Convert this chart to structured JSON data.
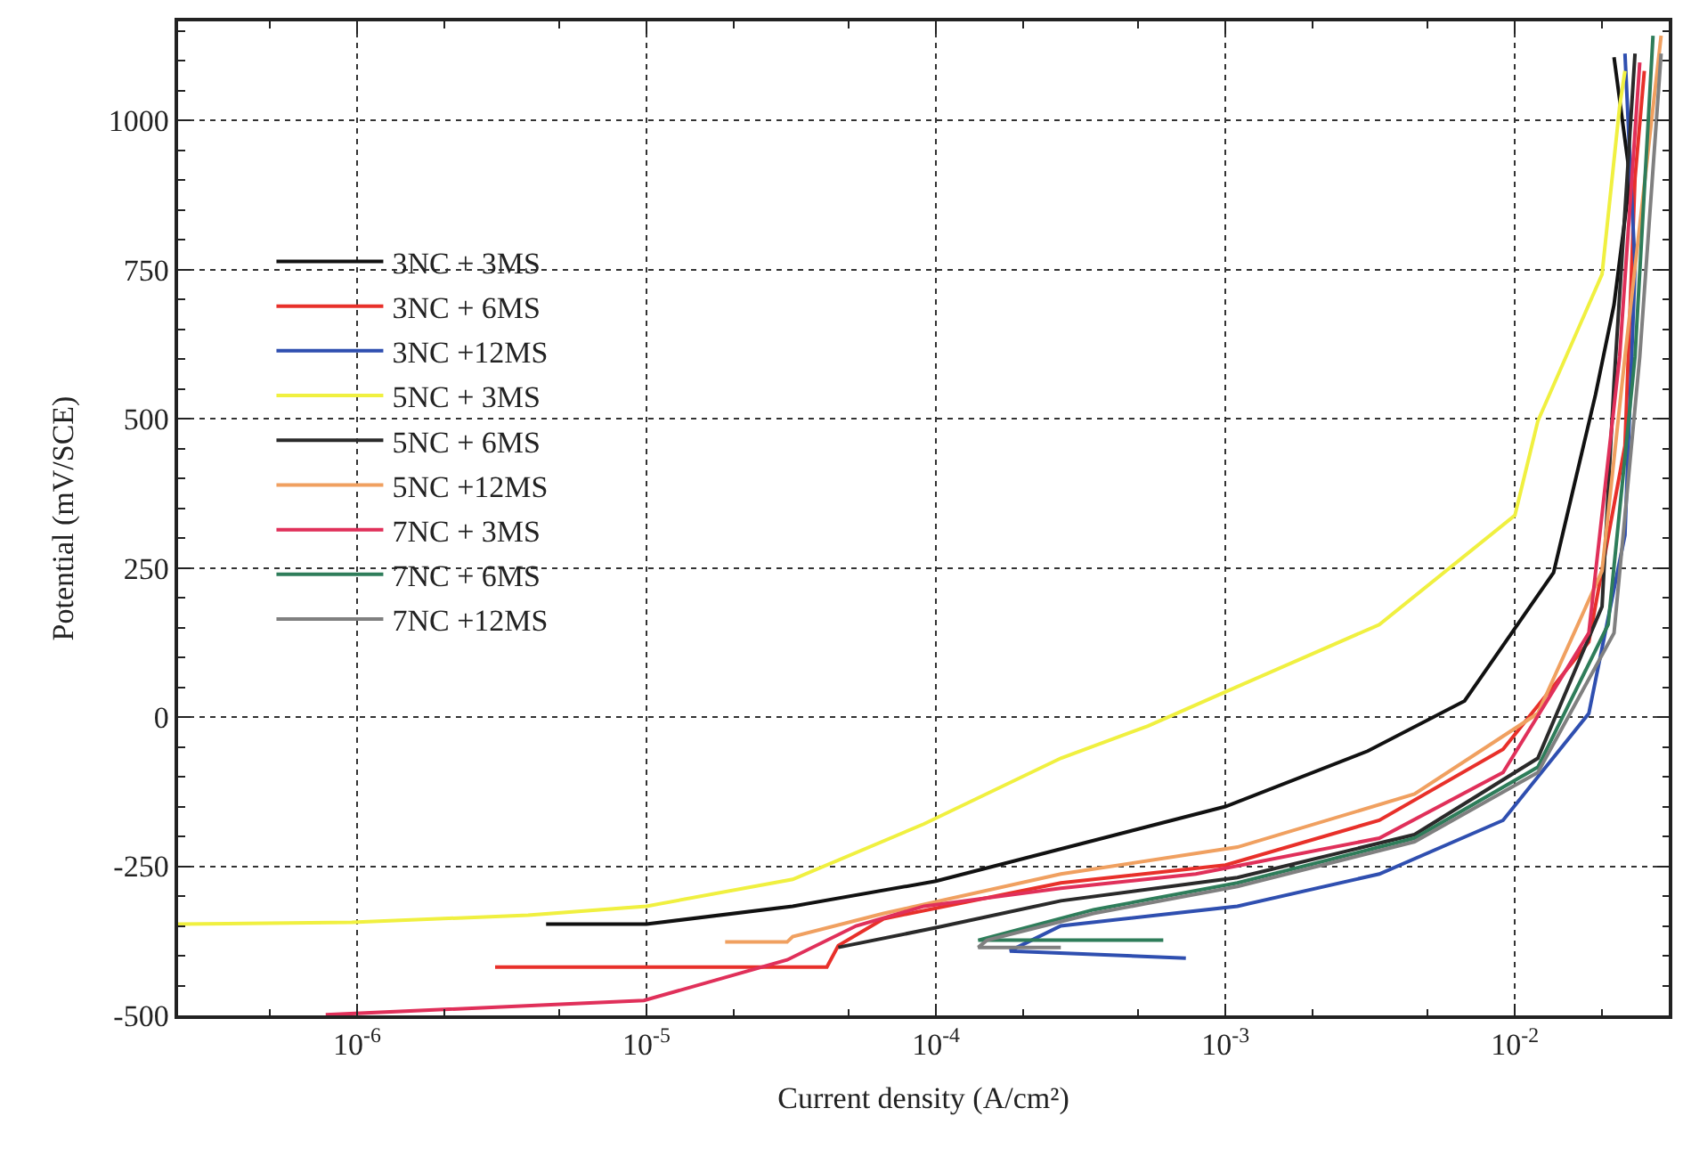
{
  "chart_data": {
    "type": "line",
    "xlabel": "Current density (A/cm²)",
    "ylabel": "Potential (mV/SCE)",
    "log": "x",
    "xlim": [
      2.41e-07,
      0.034
    ],
    "ylim": [
      -500,
      1166
    ],
    "xticks": [
      {
        "value": 1e-06,
        "label": "10$^{-6}$"
      },
      {
        "value": 1e-05,
        "label": "10$^{-5}$"
      },
      {
        "value": 0.0001,
        "label": "10$^{-4}$"
      },
      {
        "value": 0.001,
        "label": "10$^{-3}$"
      },
      {
        "value": 0.01,
        "label": "10$^{-2}$"
      }
    ],
    "yticks": [
      -500,
      -250,
      0,
      250,
      500,
      750,
      1000
    ],
    "grid": true,
    "legend": "top left",
    "marker": "none",
    "line_style": "solid",
    "series": [
      {
        "name": "3NC + 3MS",
        "color": "#111111",
        "x": [
          4.5e-06,
          1e-05,
          3.2e-05,
          0.0001,
          0.001,
          0.0031,
          0.0067,
          0.0136,
          0.019,
          0.022,
          0.025,
          0.022
        ],
        "values": [
          -347,
          -347,
          -317,
          -275,
          -150,
          -57,
          27,
          242,
          541,
          691,
          903,
          1106
        ]
      },
      {
        "name": "3NC + 6MS",
        "color": "#e8302a",
        "x": [
          3e-06,
          4.2e-05,
          4.6e-05,
          6.6e-05,
          0.00027,
          0.001,
          0.0034,
          0.0091,
          0.018,
          0.024,
          0.026,
          0.028
        ],
        "values": [
          -419,
          -419,
          -383,
          -338,
          -278,
          -248,
          -173,
          -54,
          126,
          455,
          903,
          1083
        ]
      },
      {
        "name": "3NC +12MS",
        "color": "#2f4fb0",
        "x": [
          0.00073,
          0.00018,
          0.00027,
          0.0011,
          0.0034,
          0.0091,
          0.018,
          0.024,
          0.026,
          0.024
        ],
        "values": [
          -404,
          -392,
          -350,
          -317,
          -263,
          -173,
          6,
          305,
          754,
          1112
        ]
      },
      {
        "name": "5NC + 3MS",
        "color": "#f0f040",
        "x": [
          2.41e-07,
          9.6e-07,
          3.9e-06,
          1e-05,
          3.2e-05,
          9.1e-05,
          0.00027,
          0.00054,
          0.0011,
          0.0034,
          0.01,
          0.012,
          0.02,
          0.023,
          0.024
        ],
        "values": [
          -347,
          -344,
          -332,
          -317,
          -272,
          -179,
          -69,
          -15,
          51,
          155,
          338,
          496,
          742,
          1023,
          1083
        ]
      },
      {
        "name": "5NC + 6MS",
        "color": "#2a2a2a",
        "x": [
          4.6e-05,
          0.0001,
          0.00027,
          0.0011,
          0.0045,
          0.012,
          0.02,
          0.022,
          0.026
        ],
        "values": [
          -386,
          -353,
          -308,
          -269,
          -197,
          -69,
          185,
          560,
          1112
        ]
      },
      {
        "name": "5NC +12MS",
        "color": "#f0a060",
        "x": [
          1.87e-05,
          3.06e-05,
          3.2e-05,
          6.6e-05,
          0.00027,
          0.0011,
          0.0045,
          0.012,
          0.02,
          0.024,
          0.032
        ],
        "values": [
          -377,
          -377,
          -368,
          -329,
          -263,
          -218,
          -129,
          6,
          245,
          604,
          1142
        ]
      },
      {
        "name": "7NC + 3MS",
        "color": "#e0305a",
        "x": [
          7.8e-07,
          9.8e-06,
          3.06e-05,
          5.3e-05,
          9.1e-05,
          0.00027,
          0.00079,
          0.0034,
          0.0091,
          0.018,
          0.023,
          0.027
        ],
        "values": [
          -499,
          -475,
          -407,
          -350,
          -317,
          -287,
          -263,
          -203,
          -93,
          141,
          604,
          1097
        ]
      },
      {
        "name": "7NC + 6MS",
        "color": "#2e7d5a",
        "x": [
          0.00061,
          0.00014,
          0.00035,
          0.0011,
          0.0045,
          0.012,
          0.021,
          0.026,
          0.03
        ],
        "values": [
          -374,
          -374,
          -323,
          -278,
          -203,
          -84,
          155,
          604,
          1142
        ]
      },
      {
        "name": "7NC +12MS",
        "color": "#808080",
        "x": [
          0.00027,
          0.00014,
          0.00015,
          0.00035,
          0.0011,
          0.0045,
          0.012,
          0.022,
          0.027,
          0.032
        ],
        "values": [
          -386,
          -386,
          -374,
          -329,
          -284,
          -209,
          -93,
          141,
          604,
          1112
        ]
      }
    ]
  }
}
